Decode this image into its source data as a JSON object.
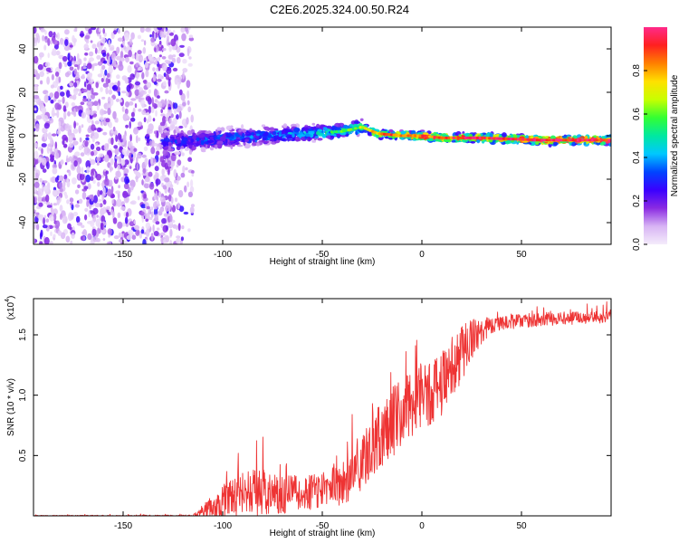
{
  "figure_title": "C2E6.2025.324.00.50.R24",
  "chart_data": [
    {
      "type": "heatmap",
      "title": "C2E6.2025.324.00.50.R24",
      "xlabel": "Height of straight line (km)",
      "ylabel": "Frequency (Hz)",
      "xlim": [
        -195,
        95
      ],
      "ylim": [
        -50,
        50
      ],
      "x_ticks": [
        -150,
        -100,
        -50,
        0,
        50
      ],
      "x_tick_labels": [
        "-150",
        "-100",
        "-50",
        "0",
        "50"
      ],
      "y_ticks": [
        -40,
        -20,
        0,
        20,
        40
      ],
      "y_tick_labels": [
        "-40",
        "-20",
        "0",
        "20",
        "40"
      ],
      "colorbar": {
        "label": "Normalized spectral amplitude",
        "range": [
          0,
          1
        ],
        "ticks": [
          0.0,
          0.2,
          0.4,
          0.6,
          0.8
        ],
        "tick_labels": [
          "0.0",
          "0.2",
          "0.4",
          "0.6",
          "0.8"
        ],
        "colors": [
          "#f4ecfb",
          "#d8b4f4",
          "#8a2be2",
          "#3a00ff",
          "#0044ff",
          "#00c8ff",
          "#00e8a0",
          "#33ff33",
          "#c8ff00",
          "#ffe000",
          "#ff8000",
          "#ff2020",
          "#ff2a8a"
        ]
      },
      "noise_region": {
        "x": [
          -195,
          -115
        ],
        "frequency": [
          -50,
          50
        ],
        "amplitude": [
          0.05,
          0.25
        ]
      },
      "ridge_center": [
        {
          "x": -130,
          "frequency": -3
        },
        {
          "x": -110,
          "frequency": -2
        },
        {
          "x": -100,
          "frequency": -1
        },
        {
          "x": -80,
          "frequency": 0
        },
        {
          "x": -60,
          "frequency": 1
        },
        {
          "x": -40,
          "frequency": 2
        },
        {
          "x": -30,
          "frequency": 4
        },
        {
          "x": -22,
          "frequency": 1
        },
        {
          "x": -10,
          "frequency": 0
        },
        {
          "x": 0,
          "frequency": 0
        },
        {
          "x": 10,
          "frequency": -1
        },
        {
          "x": 30,
          "frequency": -1
        },
        {
          "x": 60,
          "frequency": -2
        },
        {
          "x": 95,
          "frequency": -2
        }
      ],
      "ridge_amplitude": [
        {
          "x": -130,
          "value": 0.3
        },
        {
          "x": -100,
          "value": 0.35
        },
        {
          "x": -60,
          "value": 0.45
        },
        {
          "x": -35,
          "value": 0.6
        },
        {
          "x": -20,
          "value": 0.85
        },
        {
          "x": 0,
          "value": 0.9
        },
        {
          "x": 95,
          "value": 1.0
        }
      ]
    },
    {
      "type": "line",
      "xlabel": "Height of straight line (km)",
      "ylabel": "SNR (10 * v/v)",
      "multiplier_label": "(x10",
      "multiplier_exponent": "4",
      "multiplier_suffix": ")",
      "xlim": [
        -195,
        95
      ],
      "ylim": [
        0,
        1.8
      ],
      "x_ticks": [
        -150,
        -100,
        -50,
        0,
        50
      ],
      "x_tick_labels": [
        "-150",
        "-100",
        "-50",
        "0",
        "50"
      ],
      "y_ticks": [
        0.5,
        1.0,
        1.5
      ],
      "y_tick_labels": [
        "0.5",
        "1.0",
        "1.5"
      ],
      "color": "#ee3333",
      "series": [
        {
          "name": "SNR",
          "baseline": [
            {
              "x": -195,
              "y": 0.0
            },
            {
              "x": -115,
              "y": 0.0
            },
            {
              "x": -100,
              "y": 0.12
            },
            {
              "x": -85,
              "y": 0.2
            },
            {
              "x": -70,
              "y": 0.18
            },
            {
              "x": -50,
              "y": 0.2
            },
            {
              "x": -40,
              "y": 0.25
            },
            {
              "x": -30,
              "y": 0.45
            },
            {
              "x": -20,
              "y": 0.7
            },
            {
              "x": -5,
              "y": 0.95
            },
            {
              "x": 10,
              "y": 1.1
            },
            {
              "x": 20,
              "y": 1.35
            },
            {
              "x": 30,
              "y": 1.55
            },
            {
              "x": 40,
              "y": 1.6
            },
            {
              "x": 60,
              "y": 1.63
            },
            {
              "x": 95,
              "y": 1.65
            }
          ],
          "spread": [
            {
              "x": -195,
              "y": 0.004
            },
            {
              "x": -115,
              "y": 0.008
            },
            {
              "x": -100,
              "y": 0.14
            },
            {
              "x": -85,
              "y": 0.2
            },
            {
              "x": -60,
              "y": 0.14
            },
            {
              "x": -35,
              "y": 0.2
            },
            {
              "x": -20,
              "y": 0.3
            },
            {
              "x": 0,
              "y": 0.3
            },
            {
              "x": 20,
              "y": 0.25
            },
            {
              "x": 35,
              "y": 0.06
            },
            {
              "x": 95,
              "y": 0.05
            }
          ]
        }
      ]
    }
  ]
}
